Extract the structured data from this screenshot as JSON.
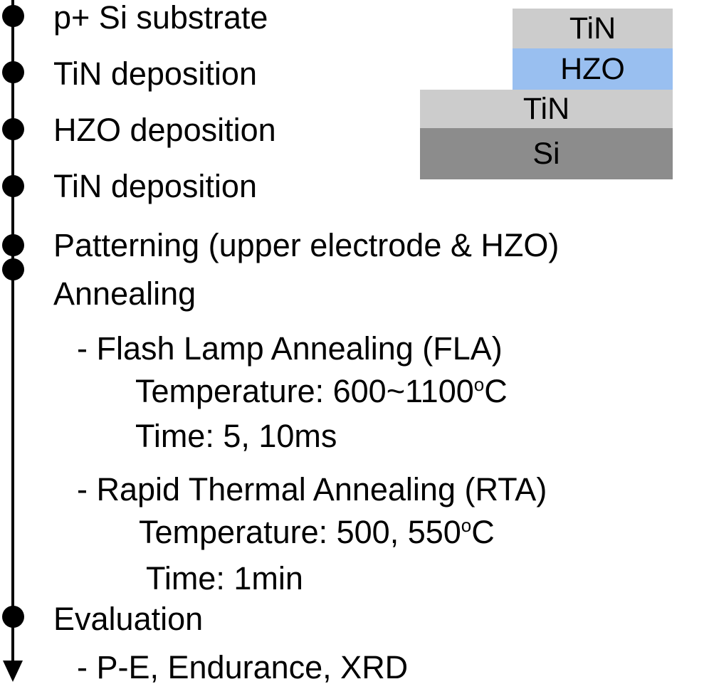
{
  "steps": [
    {
      "label": "p+ Si substrate"
    },
    {
      "label": "TiN deposition"
    },
    {
      "label": "HZO deposition"
    },
    {
      "label": "TiN deposition"
    },
    {
      "label": "Patterning (upper electrode & HZO)"
    },
    {
      "label": "Annealing"
    },
    {
      "label": "Evaluation"
    }
  ],
  "annealing": {
    "fla": {
      "title": "- Flash Lamp Annealing (FLA)",
      "temperature": "Temperature: 600~1100",
      "temp_sup": "o",
      "temp_unit": "C",
      "time": "Time: 5, 10ms"
    },
    "rta": {
      "title": "- Rapid Thermal Annealing (RTA)",
      "temperature": "Temperature: 500, 550",
      "temp_sup": "o",
      "temp_unit": "C",
      "time": "Time: 1min"
    }
  },
  "evaluation": {
    "items": "- P-E, Endurance, XRD"
  },
  "stack": {
    "layers": [
      {
        "label": "TiN",
        "color": "#cccccc"
      },
      {
        "label": "HZO",
        "color": "#99bff0"
      },
      {
        "label": "TiN",
        "color": "#cccccc"
      },
      {
        "label": "Si",
        "color": "#8c8c8c"
      }
    ]
  }
}
